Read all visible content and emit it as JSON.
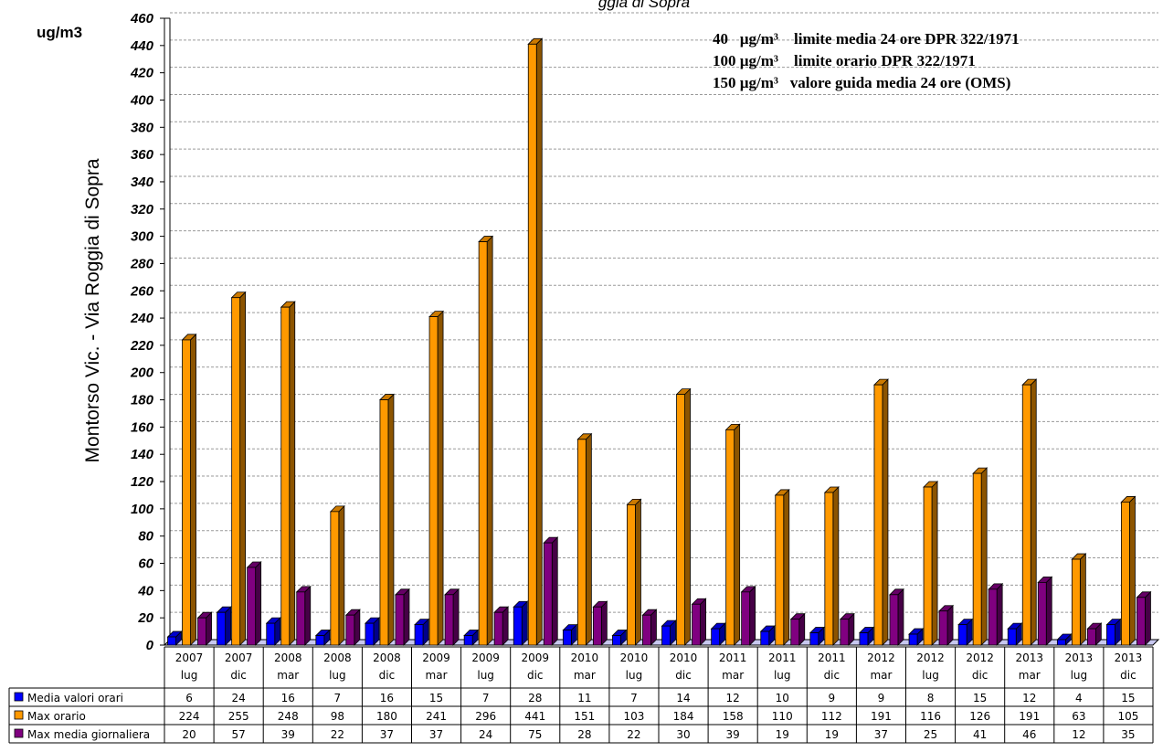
{
  "chart_data": {
    "type": "bar",
    "title_fragment": "ggia di Sopra",
    "ylabel": "Montorso Vic. - Via Roggia di Sopra",
    "unit": "ug/m3",
    "ylim": [
      0,
      460
    ],
    "ytick_step": 20,
    "grid": true,
    "annotations": [
      "40   µg/m³    limite media 24 ore DPR 322/1971",
      "100 µg/m³    limite orario DPR 322/1971",
      "150 µg/m³   valore guida media 24 ore (OMS)"
    ],
    "categories": [
      [
        "2007",
        "lug"
      ],
      [
        "2007",
        "dic"
      ],
      [
        "2008",
        "mar"
      ],
      [
        "2008",
        "lug"
      ],
      [
        "2008",
        "dic"
      ],
      [
        "2009",
        "mar"
      ],
      [
        "2009",
        "lug"
      ],
      [
        "2009",
        "dic"
      ],
      [
        "2010",
        "mar"
      ],
      [
        "2010",
        "lug"
      ],
      [
        "2010",
        "dic"
      ],
      [
        "2011",
        "mar"
      ],
      [
        "2011",
        "lug"
      ],
      [
        "2011",
        "dic"
      ],
      [
        "2012",
        "mar"
      ],
      [
        "2012",
        "lug"
      ],
      [
        "2012",
        "dic"
      ],
      [
        "2013",
        "mar"
      ],
      [
        "2013",
        "lug"
      ],
      [
        "2013",
        "dic"
      ]
    ],
    "series": [
      {
        "name": "Media valori orari",
        "color": "#0000ff",
        "values": [
          6,
          24,
          16,
          7,
          16,
          15,
          7,
          28,
          11,
          7,
          14,
          12,
          10,
          9,
          9,
          8,
          15,
          12,
          4,
          15
        ]
      },
      {
        "name": "Max orario",
        "color": "#ff9900",
        "values": [
          224,
          255,
          248,
          98,
          180,
          241,
          296,
          441,
          151,
          103,
          184,
          158,
          110,
          112,
          191,
          116,
          126,
          191,
          63,
          105
        ]
      },
      {
        "name": "Max media giornaliera",
        "color": "#800080",
        "values": [
          20,
          57,
          39,
          22,
          37,
          37,
          24,
          75,
          28,
          22,
          30,
          39,
          19,
          19,
          37,
          25,
          41,
          46,
          12,
          35
        ]
      }
    ]
  }
}
